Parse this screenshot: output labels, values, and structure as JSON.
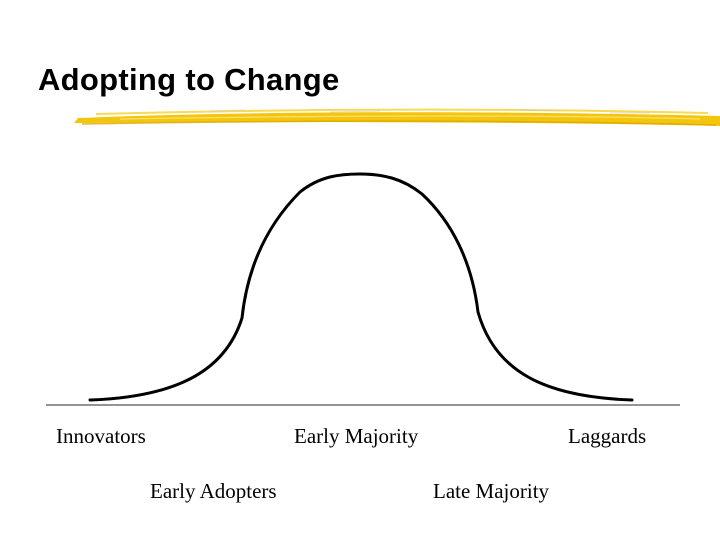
{
  "slide": {
    "title": "Adopting to Change",
    "accent_color": "#f2c200",
    "labels": {
      "innovators": "Innovators",
      "early_majority": "Early Majority",
      "laggards": "Laggards",
      "early_adopters": "Early Adopters",
      "late_majority": "Late Majority"
    }
  }
}
